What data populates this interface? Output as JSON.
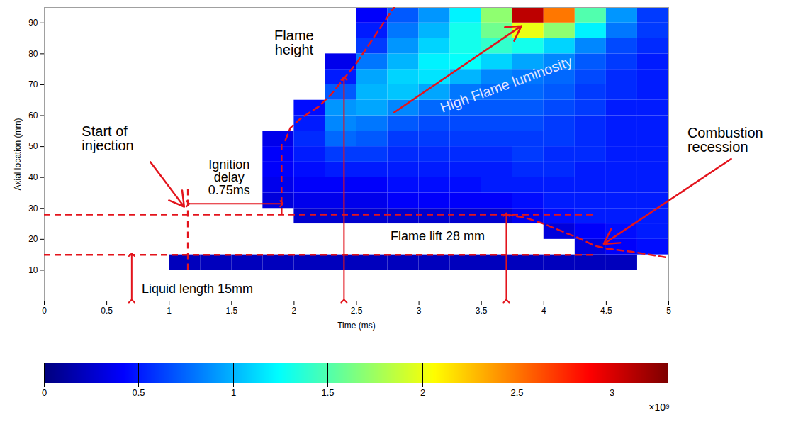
{
  "chart_data": {
    "type": "heatmap",
    "x_label": "Time (ms)",
    "y_label": "Axial location (mm)",
    "xlim": [
      0,
      5
    ],
    "xticks": [
      0,
      0.5,
      1,
      1.5,
      2,
      2.5,
      3,
      3.5,
      4,
      4.5,
      5
    ],
    "ylim": [
      0,
      95
    ],
    "yticks": [
      10,
      20,
      30,
      40,
      50,
      60,
      70,
      80,
      90
    ],
    "time_bins": [
      0,
      0.25,
      0.5,
      0.75,
      1,
      1.25,
      1.5,
      1.75,
      2,
      2.25,
      2.5,
      2.75,
      3,
      3.25,
      3.5,
      3.75,
      4,
      4.25,
      4.5,
      4.75,
      5
    ],
    "axial_bins": [
      10,
      15,
      20,
      25,
      30,
      35,
      40,
      45,
      50,
      55,
      60,
      65,
      70,
      75,
      80,
      85,
      90,
      95
    ],
    "cells": [
      [
        null,
        null,
        null,
        null,
        0.2,
        0.2,
        0.2,
        0.2,
        0.2,
        0.2,
        0.2,
        0.2,
        0.2,
        0.2,
        0.2,
        0.2,
        0.2,
        0.2,
        0.2,
        null
      ],
      [
        null,
        null,
        null,
        null,
        null,
        null,
        null,
        null,
        null,
        null,
        null,
        null,
        null,
        null,
        null,
        null,
        null,
        0.3,
        0.4,
        0.45
      ],
      [
        null,
        null,
        null,
        null,
        null,
        null,
        null,
        null,
        null,
        null,
        null,
        null,
        null,
        null,
        null,
        null,
        0.3,
        0.4,
        0.45,
        0.5
      ],
      [
        null,
        null,
        null,
        null,
        null,
        null,
        null,
        null,
        0.25,
        0.25,
        0.25,
        0.25,
        0.25,
        0.25,
        0.25,
        0.35,
        0.45,
        0.5,
        0.5,
        0.5
      ],
      [
        null,
        null,
        null,
        null,
        null,
        null,
        null,
        0.3,
        0.35,
        0.35,
        0.35,
        0.4,
        0.4,
        0.4,
        0.4,
        0.45,
        0.5,
        0.5,
        0.5,
        0.5
      ],
      [
        null,
        null,
        null,
        null,
        null,
        null,
        null,
        0.35,
        0.4,
        0.4,
        0.4,
        0.45,
        0.45,
        0.45,
        0.5,
        0.5,
        0.5,
        0.5,
        0.5,
        0.5
      ],
      [
        null,
        null,
        null,
        null,
        null,
        null,
        null,
        0.4,
        0.45,
        0.5,
        0.5,
        0.5,
        0.5,
        0.5,
        0.5,
        0.55,
        0.55,
        0.5,
        0.5,
        0.5
      ],
      [
        null,
        null,
        null,
        null,
        null,
        null,
        null,
        0.4,
        0.5,
        0.6,
        0.6,
        0.55,
        0.55,
        0.55,
        0.55,
        0.6,
        0.55,
        0.55,
        0.5,
        0.5
      ],
      [
        null,
        null,
        null,
        null,
        null,
        null,
        null,
        0.35,
        0.55,
        0.75,
        0.7,
        0.6,
        0.6,
        0.6,
        0.6,
        0.6,
        0.6,
        0.55,
        0.5,
        0.5
      ],
      [
        null,
        null,
        null,
        null,
        null,
        null,
        null,
        null,
        0.5,
        0.85,
        0.8,
        0.7,
        0.65,
        0.65,
        0.65,
        0.65,
        0.6,
        0.55,
        0.5,
        0.5
      ],
      [
        null,
        null,
        null,
        null,
        null,
        null,
        null,
        null,
        0.45,
        0.9,
        0.95,
        0.85,
        0.75,
        0.7,
        0.7,
        0.7,
        0.65,
        0.6,
        0.5,
        0.5
      ],
      [
        null,
        null,
        null,
        null,
        null,
        null,
        null,
        null,
        null,
        0.7,
        1.0,
        1.05,
        0.95,
        0.8,
        0.75,
        0.75,
        0.7,
        0.6,
        0.55,
        0.5
      ],
      [
        null,
        null,
        null,
        null,
        null,
        null,
        null,
        null,
        null,
        0.5,
        0.95,
        1.1,
        1.15,
        1.0,
        0.85,
        0.8,
        0.75,
        0.65,
        0.55,
        0.5
      ],
      [
        null,
        null,
        null,
        null,
        null,
        null,
        null,
        null,
        null,
        0.35,
        0.8,
        1.0,
        1.2,
        1.25,
        1.1,
        0.95,
        0.85,
        0.7,
        0.6,
        0.5
      ],
      [
        null,
        null,
        null,
        null,
        null,
        null,
        null,
        null,
        null,
        null,
        0.6,
        0.9,
        1.1,
        1.3,
        1.4,
        1.3,
        1.1,
        0.85,
        0.65,
        0.55
      ],
      [
        null,
        null,
        null,
        null,
        null,
        null,
        null,
        null,
        null,
        null,
        0.5,
        0.8,
        1.0,
        1.3,
        1.6,
        2.0,
        1.7,
        1.2,
        0.8,
        0.6
      ],
      [
        null,
        null,
        null,
        null,
        null,
        null,
        null,
        null,
        null,
        null,
        0.4,
        0.7,
        0.9,
        1.2,
        1.7,
        3.1,
        2.5,
        1.5,
        0.9,
        0.6
      ]
    ],
    "colorbar": {
      "range": [
        0,
        3.3
      ],
      "ticks": [
        0,
        0.5,
        1,
        1.5,
        2,
        2.5,
        3
      ],
      "multiplier": "×10⁹"
    },
    "start_of_injection": 1.15,
    "ignition_delay": 0.75,
    "liquid_length": 15,
    "flame_lift": 28,
    "flame_height_edge": {
      "x": [
        1.93,
        1.97,
        2.05,
        2.2,
        2.3,
        2.4,
        2.5,
        2.6,
        2.7,
        2.8
      ],
      "y": [
        52,
        56,
        59,
        63,
        67,
        72,
        77,
        83,
        89,
        95
      ]
    },
    "recession_edge": {
      "x": [
        3.7,
        3.85,
        4.0,
        4.15,
        4.3,
        4.4,
        4.5,
        4.7,
        5.0
      ],
      "y": [
        28,
        27,
        25,
        22.5,
        20,
        18,
        17,
        16,
        14
      ]
    },
    "annotations": {
      "start_of_injection": "Start of injection",
      "ignition_delay": "Ignition delay 0.75ms",
      "flame_height": "Flame height",
      "high_luminosity": "High Flame luminosity",
      "flame_lift": "Flame lift 28 mm",
      "liquid_length": "Liquid length 15mm",
      "combustion_recession": "Combustion recession"
    },
    "color": "#e3141c"
  }
}
